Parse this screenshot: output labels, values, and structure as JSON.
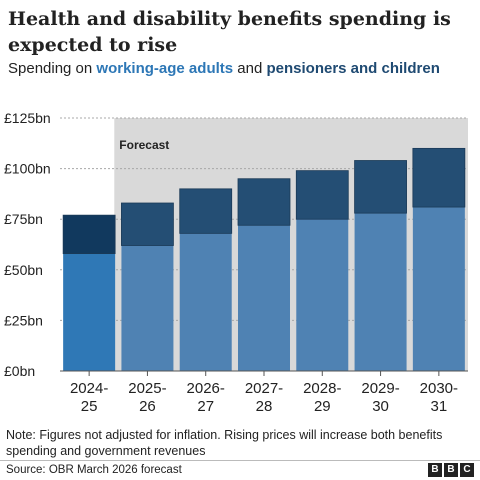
{
  "title": "Health and disability benefits spending is expected to rise",
  "subtitle": {
    "prefix": "Spending on ",
    "series_a": "working-age adults",
    "middle": " and ",
    "series_b": "pensioners and children"
  },
  "note": "Note: Figures not adjusted for inflation. Rising prices will increase both benefits spending and government revenues",
  "source": "Source: OBR March 2026 forecast",
  "logo": [
    "B",
    "B",
    "C"
  ],
  "colors": {
    "working_age_actual": "#2f78b6",
    "pensioners_actual": "#11395e",
    "working_age_forecast": "#4f82b3",
    "pensioners_forecast": "#244e74",
    "forecast_shade": "#d9d9d9",
    "series_a_text": "#2d77b6",
    "series_b_text": "#1f4a72"
  },
  "chart_data": {
    "type": "bar",
    "stacked": true,
    "categories": [
      [
        "2024-",
        "25"
      ],
      [
        "2025-",
        "26"
      ],
      [
        "2026-",
        "27"
      ],
      [
        "2027-",
        "28"
      ],
      [
        "2028-",
        "29"
      ],
      [
        "2029-",
        "30"
      ],
      [
        "2030-",
        "31"
      ]
    ],
    "series": [
      {
        "name": "working-age adults",
        "values": [
          58,
          62,
          68,
          72,
          75,
          78,
          81
        ]
      },
      {
        "name": "pensioners and children",
        "values": [
          19,
          21,
          22,
          23,
          24,
          26,
          29
        ]
      }
    ],
    "forecast_from_index": 1,
    "forecast_label": "Forecast",
    "ylim": [
      0,
      125
    ],
    "yticks": [
      0,
      25,
      50,
      75,
      100,
      125
    ],
    "ytick_labels": [
      "£0bn",
      "£25bn",
      "£50bn",
      "£75bn",
      "£100bn",
      "£125bn"
    ],
    "grid": true
  }
}
